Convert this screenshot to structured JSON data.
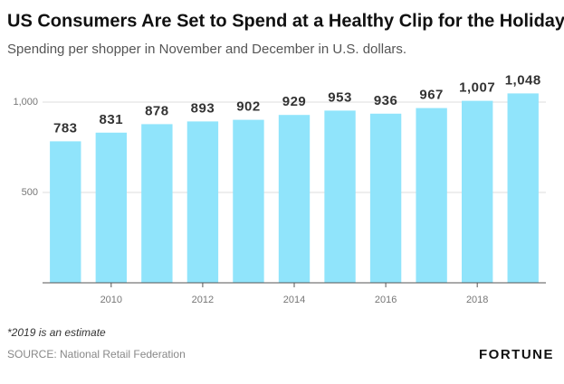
{
  "chart_data": {
    "type": "bar",
    "title": "US Consumers Are Set to Spend at a Healthy Clip for the Holidays",
    "subtitle": "Spending per shopper in November and December in U.S. dollars.",
    "categories": [
      null,
      "2010",
      null,
      "2012",
      null,
      "2014",
      null,
      "2016",
      null,
      "2018",
      null
    ],
    "values": [
      783,
      831,
      878,
      893,
      902,
      929,
      953,
      936,
      967,
      1007,
      1048
    ],
    "value_labels": [
      "783",
      "831",
      "878",
      "893",
      "902",
      "929",
      "953",
      "936",
      "967",
      "1,007",
      "1,048"
    ],
    "color": "#90e4fb",
    "ylim": [
      0,
      1100
    ],
    "yticks": [
      500,
      {
        "value": 1000,
        "label": "1,000"
      }
    ],
    "grid": true,
    "note": "*2019 is an estimate",
    "source": "SOURCE: National Retail Federation",
    "brand": "FORTUNE"
  }
}
